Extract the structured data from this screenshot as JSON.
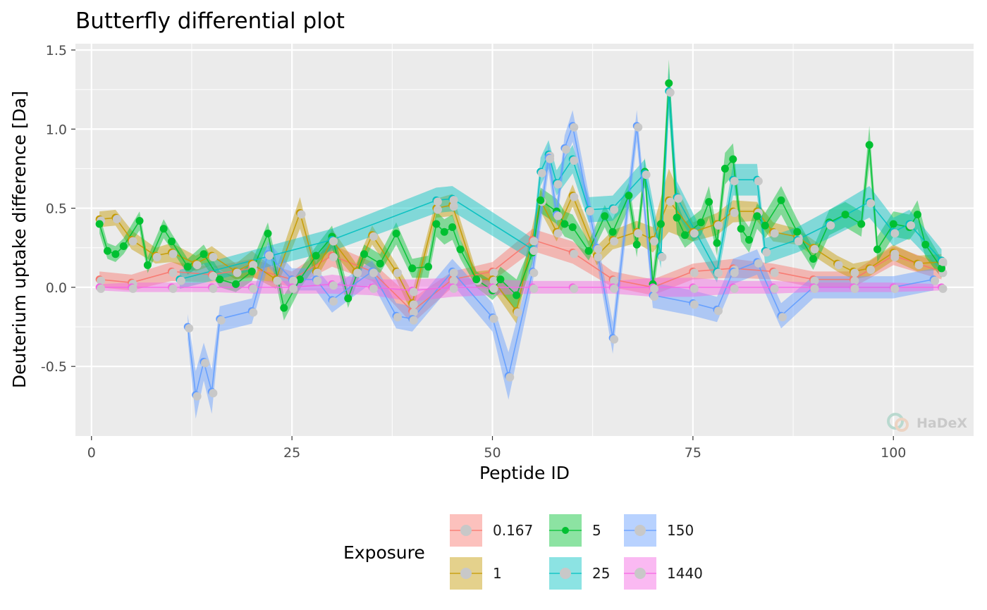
{
  "chart_data": {
    "type": "line",
    "title": "Butterfly differential plot",
    "xlabel": "Peptide ID",
    "ylabel": "Deuterium uptake difference [Da]",
    "xlim": [
      -2,
      110
    ],
    "ylim": [
      -0.94,
      1.54
    ],
    "x_ticks": [
      0,
      25,
      50,
      75,
      100
    ],
    "x_tick_labels": [
      "0",
      "25",
      "50",
      "75",
      "100"
    ],
    "y_ticks": [
      -0.5,
      0.0,
      0.5,
      1.0,
      1.5
    ],
    "y_tick_labels": [
      "-0.5",
      "0.0",
      "0.5",
      "1.0",
      "1.5"
    ],
    "grid": true,
    "legend": {
      "title": "Exposure",
      "placement": "bottom"
    },
    "series": [
      {
        "name": "0.167",
        "color": "#F8766D",
        "x": [
          1,
          5,
          10,
          15,
          20,
          25,
          30,
          35,
          40,
          45,
          50,
          55,
          60,
          65,
          70,
          75,
          80,
          85,
          90,
          95,
          100,
          106
        ],
        "values": [
          0.05,
          0.03,
          0.1,
          0.08,
          0.12,
          0.05,
          0.2,
          0.1,
          -0.15,
          0.05,
          0.1,
          0.3,
          0.22,
          0.05,
          0.0,
          0.1,
          0.12,
          0.1,
          0.05,
          0.05,
          0.2,
          0.1
        ],
        "error": [
          0.05,
          0.05,
          0.06,
          0.05,
          0.06,
          0.05,
          0.07,
          0.06,
          0.08,
          0.05,
          0.06,
          0.07,
          0.07,
          0.05,
          0.05,
          0.05,
          0.06,
          0.05,
          0.05,
          0.05,
          0.06,
          0.05
        ]
      },
      {
        "name": "1",
        "color": "#C49A00",
        "x": [
          1,
          3,
          5,
          8,
          10,
          13,
          15,
          18,
          20,
          23,
          26,
          28,
          30,
          33,
          35,
          38,
          40,
          43,
          45,
          48,
          50,
          53,
          56,
          58,
          60,
          63,
          65,
          68,
          70,
          72,
          75,
          78,
          80,
          83,
          85,
          88,
          90,
          93,
          95,
          97,
          100,
          103,
          106
        ],
        "values": [
          0.43,
          0.44,
          0.3,
          0.2,
          0.22,
          0.15,
          0.2,
          0.1,
          0.15,
          0.05,
          0.47,
          0.1,
          0.3,
          0.1,
          0.33,
          0.1,
          -0.1,
          0.5,
          0.52,
          0.05,
          0.05,
          -0.15,
          0.55,
          0.35,
          0.58,
          0.2,
          0.3,
          0.35,
          0.3,
          0.55,
          0.35,
          0.4,
          0.48,
          0.48,
          0.35,
          0.32,
          0.25,
          0.15,
          0.1,
          0.12,
          0.22,
          0.15,
          0.16
        ],
        "error": [
          0.05,
          0.05,
          0.06,
          0.05,
          0.06,
          0.05,
          0.06,
          0.05,
          0.08,
          0.06,
          0.1,
          0.05,
          0.07,
          0.05,
          0.06,
          0.05,
          0.07,
          0.06,
          0.07,
          0.05,
          0.06,
          0.08,
          0.07,
          0.06,
          0.07,
          0.06,
          0.06,
          0.07,
          0.08,
          0.2,
          0.06,
          0.07,
          0.07,
          0.06,
          0.06,
          0.05,
          0.05,
          0.05,
          0.05,
          0.05,
          0.05,
          0.05,
          0.05
        ]
      },
      {
        "name": "5",
        "color": "#00C031",
        "x": [
          1,
          2,
          3,
          4,
          6,
          7,
          9,
          10,
          12,
          14,
          16,
          18,
          20,
          22,
          24,
          26,
          28,
          30,
          32,
          34,
          36,
          38,
          40,
          42,
          43,
          44,
          45,
          46,
          48,
          50,
          51,
          53,
          55,
          56,
          58,
          59,
          60,
          62,
          64,
          65,
          67,
          68,
          69,
          70,
          71,
          72,
          73,
          74,
          76,
          77,
          78,
          79,
          80,
          81,
          82,
          83,
          84,
          86,
          88,
          90,
          92,
          94,
          96,
          97,
          98,
          100,
          102,
          103,
          104,
          106
        ],
        "values": [
          0.4,
          0.23,
          0.21,
          0.26,
          0.42,
          0.14,
          0.37,
          0.29,
          0.13,
          0.21,
          0.05,
          0.02,
          0.1,
          0.34,
          -0.13,
          0.05,
          0.2,
          0.32,
          -0.07,
          0.21,
          0.15,
          0.34,
          0.12,
          0.13,
          0.4,
          0.35,
          0.38,
          0.24,
          0.05,
          -0.02,
          0.05,
          -0.05,
          0.22,
          0.55,
          0.48,
          0.4,
          0.38,
          0.23,
          0.45,
          0.35,
          0.58,
          0.27,
          0.73,
          0.02,
          0.4,
          1.29,
          0.44,
          0.33,
          0.41,
          0.54,
          0.28,
          0.75,
          0.81,
          0.37,
          0.3,
          0.45,
          0.39,
          0.55,
          0.35,
          0.18,
          0.41,
          0.46,
          0.4,
          0.9,
          0.24,
          0.4,
          0.38,
          0.46,
          0.27,
          0.12
        ],
        "error": [
          0.06,
          0.05,
          0.05,
          0.05,
          0.06,
          0.05,
          0.06,
          0.05,
          0.05,
          0.06,
          0.05,
          0.05,
          0.06,
          0.07,
          0.08,
          0.06,
          0.06,
          0.07,
          0.06,
          0.06,
          0.06,
          0.07,
          0.06,
          0.07,
          0.08,
          0.08,
          0.08,
          0.06,
          0.05,
          0.06,
          0.08,
          0.1,
          0.07,
          0.08,
          0.08,
          0.08,
          0.08,
          0.06,
          0.07,
          0.08,
          0.08,
          0.08,
          0.09,
          0.08,
          0.1,
          0.15,
          0.1,
          0.08,
          0.08,
          0.1,
          0.08,
          0.1,
          0.1,
          0.08,
          0.08,
          0.08,
          0.08,
          0.09,
          0.08,
          0.07,
          0.08,
          0.08,
          0.08,
          0.12,
          0.08,
          0.08,
          0.08,
          0.09,
          0.08,
          0.06
        ]
      },
      {
        "name": "25",
        "color": "#00C0C0",
        "x": [
          11,
          30,
          43,
          45,
          55,
          56,
          57,
          58,
          60,
          62,
          65,
          69,
          71,
          72,
          73,
          78,
          80,
          83,
          84,
          88,
          92,
          97,
          100,
          102,
          106
        ],
        "values": [
          0.05,
          0.3,
          0.55,
          0.56,
          0.24,
          0.73,
          0.84,
          0.66,
          0.81,
          0.49,
          0.5,
          0.72,
          0.2,
          1.24,
          0.57,
          0.1,
          0.68,
          0.68,
          0.23,
          0.3,
          0.4,
          0.54,
          0.35,
          0.4,
          0.17
        ],
        "error": [
          0.06,
          0.07,
          0.08,
          0.08,
          0.07,
          0.09,
          0.09,
          0.08,
          0.09,
          0.08,
          0.08,
          0.09,
          0.08,
          0.15,
          0.1,
          0.07,
          0.1,
          0.1,
          0.08,
          0.08,
          0.09,
          0.1,
          0.09,
          0.09,
          0.07
        ]
      },
      {
        "name": "150",
        "color": "#619CFF",
        "x": [
          12,
          13,
          14,
          15,
          16,
          20,
          22,
          25,
          28,
          30,
          35,
          38,
          40,
          45,
          50,
          52,
          55,
          57,
          58,
          59,
          60,
          63,
          65,
          68,
          70,
          75,
          78,
          80,
          83,
          86,
          90,
          95,
          100,
          105
        ],
        "values": [
          -0.25,
          -0.68,
          -0.47,
          -0.66,
          -0.2,
          -0.15,
          0.21,
          0.05,
          0.05,
          -0.08,
          0.1,
          -0.18,
          -0.2,
          0.1,
          -0.19,
          -0.56,
          0.1,
          0.82,
          0.46,
          0.88,
          1.02,
          0.25,
          -0.32,
          1.02,
          -0.05,
          -0.1,
          -0.14,
          0.1,
          0.16,
          -0.18,
          0.0,
          0.0,
          0.0,
          0.05
        ],
        "error": [
          0.08,
          0.15,
          0.12,
          0.14,
          0.08,
          0.08,
          0.08,
          0.07,
          0.07,
          0.08,
          0.07,
          0.08,
          0.08,
          0.08,
          0.09,
          0.15,
          0.08,
          0.09,
          0.08,
          0.08,
          0.1,
          0.08,
          0.1,
          0.1,
          0.08,
          0.08,
          0.08,
          0.08,
          0.08,
          0.08,
          0.07,
          0.07,
          0.07,
          0.07
        ]
      },
      {
        "name": "1440",
        "color": "#F564E3",
        "x": [
          1,
          5,
          10,
          15,
          20,
          25,
          30,
          35,
          40,
          45,
          50,
          55,
          60,
          65,
          70,
          75,
          80,
          85,
          90,
          95,
          100,
          106
        ],
        "values": [
          0.0,
          0.0,
          0.0,
          0.0,
          0.0,
          0.0,
          0.02,
          0.0,
          -0.02,
          0.0,
          0.0,
          0.0,
          0.0,
          0.0,
          0.0,
          0.0,
          0.0,
          0.0,
          0.0,
          0.0,
          0.0,
          0.0
        ],
        "error": [
          0.02,
          0.03,
          0.03,
          0.03,
          0.04,
          0.04,
          0.06,
          0.05,
          0.07,
          0.06,
          0.05,
          0.04,
          0.04,
          0.04,
          0.06,
          0.06,
          0.04,
          0.04,
          0.03,
          0.03,
          0.03,
          0.02
        ]
      }
    ]
  },
  "watermark": {
    "text": "HaDeX"
  }
}
